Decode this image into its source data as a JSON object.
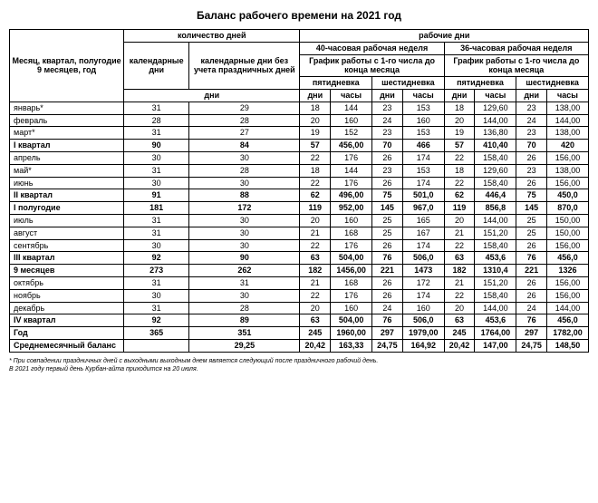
{
  "title": "Баланс рабочего времени на 2021 год",
  "headers": {
    "month_col": "Месяц, квартал, полугодие 9 месяцев, год",
    "days_group": "количество дней",
    "cal_days": "календарные дни",
    "cal_days_no_hol": "календарные дни без учета праздничных дней",
    "days_sub": "дни",
    "work_days_group": "рабочие дни",
    "week40": "40-часовая рабочая неделя",
    "week36": "36-часовая рабочая неделя",
    "schedule": "График работы с 1-го числа до конца месяца",
    "five_day": "пятидневка",
    "six_day": "шестидневка",
    "days": "дни",
    "hours": "часы"
  },
  "rows": [
    {
      "label": "январь*",
      "cal": "31",
      "calnh": "29",
      "d5_40": "18",
      "h5_40": "144",
      "d6_40": "23",
      "h6_40": "153",
      "d5_36": "18",
      "h5_36": "129,60",
      "d6_36": "23",
      "h6_36": "138,00",
      "bold": false
    },
    {
      "label": "февраль",
      "cal": "28",
      "calnh": "28",
      "d5_40": "20",
      "h5_40": "160",
      "d6_40": "24",
      "h6_40": "160",
      "d5_36": "20",
      "h5_36": "144,00",
      "d6_36": "24",
      "h6_36": "144,00",
      "bold": false
    },
    {
      "label": "март*",
      "cal": "31",
      "calnh": "27",
      "d5_40": "19",
      "h5_40": "152",
      "d6_40": "23",
      "h6_40": "153",
      "d5_36": "19",
      "h5_36": "136,80",
      "d6_36": "23",
      "h6_36": "138,00",
      "bold": false
    },
    {
      "label": "I квартал",
      "cal": "90",
      "calnh": "84",
      "d5_40": "57",
      "h5_40": "456,00",
      "d6_40": "70",
      "h6_40": "466",
      "d5_36": "57",
      "h5_36": "410,40",
      "d6_36": "70",
      "h6_36": "420",
      "bold": true
    },
    {
      "label": "апрель",
      "cal": "30",
      "calnh": "30",
      "d5_40": "22",
      "h5_40": "176",
      "d6_40": "26",
      "h6_40": "174",
      "d5_36": "22",
      "h5_36": "158,40",
      "d6_36": "26",
      "h6_36": "156,00",
      "bold": false
    },
    {
      "label": "май*",
      "cal": "31",
      "calnh": "28",
      "d5_40": "18",
      "h5_40": "144",
      "d6_40": "23",
      "h6_40": "153",
      "d5_36": "18",
      "h5_36": "129,60",
      "d6_36": "23",
      "h6_36": "138,00",
      "bold": false
    },
    {
      "label": "июнь",
      "cal": "30",
      "calnh": "30",
      "d5_40": "22",
      "h5_40": "176",
      "d6_40": "26",
      "h6_40": "174",
      "d5_36": "22",
      "h5_36": "158,40",
      "d6_36": "26",
      "h6_36": "156,00",
      "bold": false
    },
    {
      "label": "II квартал",
      "cal": "91",
      "calnh": "88",
      "d5_40": "62",
      "h5_40": "496,00",
      "d6_40": "75",
      "h6_40": "501,0",
      "d5_36": "62",
      "h5_36": "446,4",
      "d6_36": "75",
      "h6_36": "450,0",
      "bold": true
    },
    {
      "label": "I полугодие",
      "cal": "181",
      "calnh": "172",
      "d5_40": "119",
      "h5_40": "952,00",
      "d6_40": "145",
      "h6_40": "967,0",
      "d5_36": "119",
      "h5_36": "856,8",
      "d6_36": "145",
      "h6_36": "870,0",
      "bold": true
    },
    {
      "label": "июль",
      "cal": "31",
      "calnh": "30",
      "d5_40": "20",
      "h5_40": "160",
      "d6_40": "25",
      "h6_40": "165",
      "d5_36": "20",
      "h5_36": "144,00",
      "d6_36": "25",
      "h6_36": "150,00",
      "bold": false
    },
    {
      "label": "август",
      "cal": "31",
      "calnh": "30",
      "d5_40": "21",
      "h5_40": "168",
      "d6_40": "25",
      "h6_40": "167",
      "d5_36": "21",
      "h5_36": "151,20",
      "d6_36": "25",
      "h6_36": "150,00",
      "bold": false
    },
    {
      "label": "сентябрь",
      "cal": "30",
      "calnh": "30",
      "d5_40": "22",
      "h5_40": "176",
      "d6_40": "26",
      "h6_40": "174",
      "d5_36": "22",
      "h5_36": "158,40",
      "d6_36": "26",
      "h6_36": "156,00",
      "bold": false
    },
    {
      "label": "III квартал",
      "cal": "92",
      "calnh": "90",
      "d5_40": "63",
      "h5_40": "504,00",
      "d6_40": "76",
      "h6_40": "506,0",
      "d5_36": "63",
      "h5_36": "453,6",
      "d6_36": "76",
      "h6_36": "456,0",
      "bold": true
    },
    {
      "label": "9 месяцев",
      "cal": "273",
      "calnh": "262",
      "d5_40": "182",
      "h5_40": "1456,00",
      "d6_40": "221",
      "h6_40": "1473",
      "d5_36": "182",
      "h5_36": "1310,4",
      "d6_36": "221",
      "h6_36": "1326",
      "bold": true
    },
    {
      "label": "октябрь",
      "cal": "31",
      "calnh": "31",
      "d5_40": "21",
      "h5_40": "168",
      "d6_40": "26",
      "h6_40": "172",
      "d5_36": "21",
      "h5_36": "151,20",
      "d6_36": "26",
      "h6_36": "156,00",
      "bold": false
    },
    {
      "label": "ноябрь",
      "cal": "30",
      "calnh": "30",
      "d5_40": "22",
      "h5_40": "176",
      "d6_40": "26",
      "h6_40": "174",
      "d5_36": "22",
      "h5_36": "158,40",
      "d6_36": "26",
      "h6_36": "156,00",
      "bold": false
    },
    {
      "label": "декабрь",
      "cal": "31",
      "calnh": "28",
      "d5_40": "20",
      "h5_40": "160",
      "d6_40": "24",
      "h6_40": "160",
      "d5_36": "20",
      "h5_36": "144,00",
      "d6_36": "24",
      "h6_36": "144,00",
      "bold": false
    },
    {
      "label": "IV квартал",
      "cal": "92",
      "calnh": "89",
      "d5_40": "63",
      "h5_40": "504,00",
      "d6_40": "76",
      "h6_40": "506,0",
      "d5_36": "63",
      "h5_36": "453,6",
      "d6_36": "76",
      "h6_36": "456,0",
      "bold": true
    },
    {
      "label": "Год",
      "cal": "365",
      "calnh": "351",
      "d5_40": "245",
      "h5_40": "1960,00",
      "d6_40": "297",
      "h6_40": "1979,00",
      "d5_36": "245",
      "h5_36": "1764,00",
      "d6_36": "297",
      "h6_36": "1782,00",
      "bold": true
    },
    {
      "label": "Среднемесячный баланс",
      "cal": "",
      "calnh": "29,25",
      "d5_40": "20,42",
      "h5_40": "163,33",
      "d6_40": "24,75",
      "h6_40": "164,92",
      "d5_36": "20,42",
      "h5_36": "147,00",
      "d6_36": "24,75",
      "h6_36": "148,50",
      "bold": true
    }
  ],
  "footnotes": [
    "* При совпадении праздничных дней с выходными выходным днем является следующий после праздничного рабочий день.",
    "В 2021 году первый день Курбан-айта приходится на 20 июля."
  ]
}
